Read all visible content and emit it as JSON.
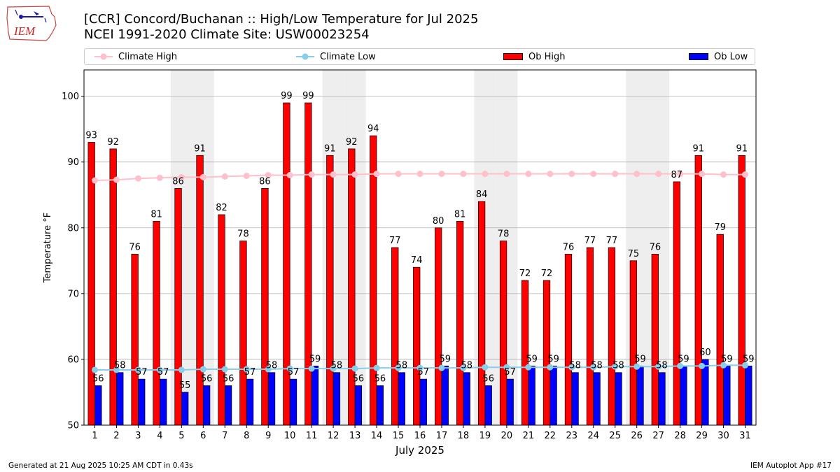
{
  "header": {
    "logo_text": "IEM",
    "title": "[CCR] Concord/Buchanan :: High/Low Temperature for Jul 2025",
    "subtitle": "NCEI 1991-2020 Climate Site: USW00023254"
  },
  "legend": {
    "climate_high": "Climate High",
    "climate_low": "Climate Low",
    "ob_high": "Ob High",
    "ob_low": "Ob Low"
  },
  "footer": {
    "generated": "Generated at 21 Aug 2025 10:25 AM CDT in 0.43s",
    "app": "IEM Autoplot App #17"
  },
  "colors": {
    "ob_high": "#ff0000",
    "ob_low": "#0000ff",
    "climate_high": "#ffc0cb",
    "climate_low": "#87ceeb",
    "weekend_shade": "#eeeeee",
    "grid": "#b0b0b0"
  },
  "chart_data": {
    "type": "bar",
    "title": "[CCR] Concord/Buchanan :: High/Low Temperature for Jul 2025",
    "xlabel": "July 2025",
    "ylabel": "Temperature °F",
    "ylim": [
      50,
      104
    ],
    "yticks": [
      50,
      60,
      70,
      80,
      90,
      100
    ],
    "grid": "horizontal",
    "legend_position": "top",
    "shaded_weekend_days": [
      5,
      6,
      12,
      13,
      19,
      20,
      26,
      27
    ],
    "categories": [
      1,
      2,
      3,
      4,
      5,
      6,
      7,
      8,
      9,
      10,
      11,
      12,
      13,
      14,
      15,
      16,
      17,
      18,
      19,
      20,
      21,
      22,
      23,
      24,
      25,
      26,
      27,
      28,
      29,
      30,
      31
    ],
    "series": [
      {
        "name": "Ob High",
        "kind": "bar",
        "values": [
          93,
          92,
          76,
          81,
          86,
          91,
          82,
          78,
          86,
          99,
          99,
          91,
          92,
          94,
          77,
          74,
          80,
          81,
          84,
          78,
          72,
          72,
          76,
          77,
          77,
          75,
          76,
          87,
          91,
          79,
          91
        ]
      },
      {
        "name": "Ob Low",
        "kind": "bar",
        "values": [
          56,
          58,
          57,
          57,
          55,
          56,
          56,
          57,
          58,
          57,
          59,
          58,
          56,
          56,
          58,
          57,
          59,
          58,
          56,
          57,
          59,
          59,
          58,
          58,
          58,
          59,
          58,
          59,
          60,
          59,
          59
        ]
      },
      {
        "name": "Climate High",
        "kind": "line",
        "values": [
          87.2,
          87.3,
          87.5,
          87.6,
          87.7,
          87.7,
          87.8,
          87.9,
          88.0,
          88.0,
          88.1,
          88.1,
          88.1,
          88.2,
          88.2,
          88.2,
          88.2,
          88.2,
          88.2,
          88.2,
          88.2,
          88.2,
          88.2,
          88.2,
          88.2,
          88.2,
          88.2,
          88.2,
          88.2,
          88.1,
          88.1
        ]
      },
      {
        "name": "Climate Low",
        "kind": "line",
        "values": [
          58.4,
          58.4,
          58.4,
          58.4,
          58.4,
          58.5,
          58.5,
          58.5,
          58.5,
          58.6,
          58.6,
          58.6,
          58.6,
          58.7,
          58.7,
          58.7,
          58.7,
          58.7,
          58.8,
          58.8,
          58.8,
          58.8,
          58.8,
          58.8,
          58.9,
          58.9,
          58.9,
          59.0,
          59.0,
          59.1,
          59.1
        ]
      }
    ]
  }
}
